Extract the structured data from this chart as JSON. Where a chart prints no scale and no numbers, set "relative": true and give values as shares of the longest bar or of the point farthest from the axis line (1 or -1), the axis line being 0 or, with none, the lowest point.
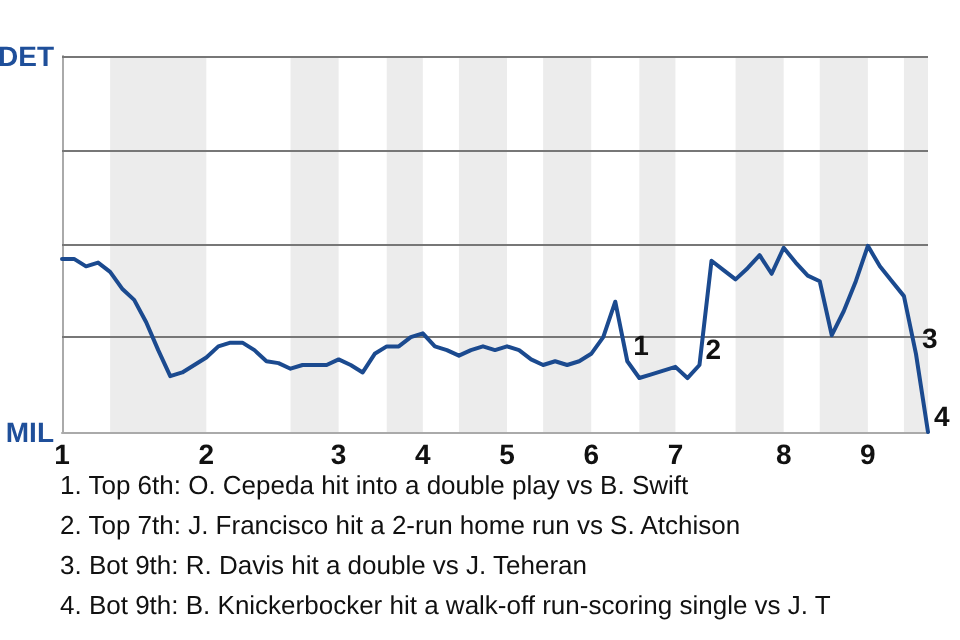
{
  "chart_data": {
    "type": "line",
    "relative": true,
    "categories": [
      "1",
      null,
      null,
      null,
      null,
      null,
      null,
      null,
      null,
      null,
      null,
      null,
      "2",
      null,
      null,
      null,
      null,
      null,
      null,
      null,
      null,
      null,
      null,
      "3",
      null,
      null,
      null,
      null,
      null,
      null,
      "4",
      null,
      null,
      null,
      null,
      null,
      null,
      "5",
      null,
      null,
      null,
      null,
      null,
      null,
      "6",
      null,
      null,
      null,
      null,
      null,
      null,
      "7",
      null,
      null,
      null,
      null,
      null,
      null,
      null,
      null,
      "8",
      null,
      null,
      null,
      null,
      null,
      null,
      "9",
      null,
      null,
      null,
      null,
      null
    ],
    "series": [
      {
        "color": "#1b4a8f",
        "values": [
          0.93,
          0.93,
          0.89,
          0.91,
          0.86,
          0.77,
          0.71,
          0.59,
          0.44,
          0.3,
          0.32,
          0.36,
          0.4,
          0.46,
          0.48,
          0.48,
          0.44,
          0.38,
          0.37,
          0.34,
          0.36,
          0.36,
          0.36,
          0.39,
          0.36,
          0.32,
          0.42,
          0.46,
          0.46,
          0.51,
          0.53,
          0.46,
          0.44,
          0.41,
          0.44,
          0.46,
          0.44,
          0.46,
          0.44,
          0.39,
          0.36,
          0.38,
          0.36,
          0.38,
          0.42,
          0.51,
          0.7,
          0.38,
          0.29,
          0.31,
          0.33,
          0.35,
          0.29,
          0.36,
          0.92,
          0.87,
          0.82,
          0.88,
          0.95,
          0.85,
          0.99,
          0.91,
          0.84,
          0.81,
          0.52,
          0.65,
          0.81,
          1,
          0.89,
          0.81,
          0.73,
          0.42,
          0
        ]
      }
    ],
    "marker": "none",
    "ref_lines": [
      {
        "axis": "y",
        "value": 0.505,
        "color": "#777777"
      },
      {
        "axis": "y",
        "value": 1.01,
        "color": "#777777"
      },
      {
        "axis": "y",
        "value": 1.515,
        "color": "#777777"
      },
      {
        "axis": "y",
        "value": 2.02,
        "color": "#777777"
      }
    ],
    "annotations": [
      "DET",
      "MIL",
      "1",
      "2",
      "3",
      "4",
      "1. Top 6th: O. Cepeda hit into a double play vs B. Swift",
      "2. Top 7th: J. Francisco hit a 2-run home run vs S. Atchison",
      "3. Bot 9th: R. Davis hit a double vs J. Teheran",
      "4. Bot 9th: B. Knickerbocker hit a walk-off run-scoring single vs J. T"
    ]
  }
}
